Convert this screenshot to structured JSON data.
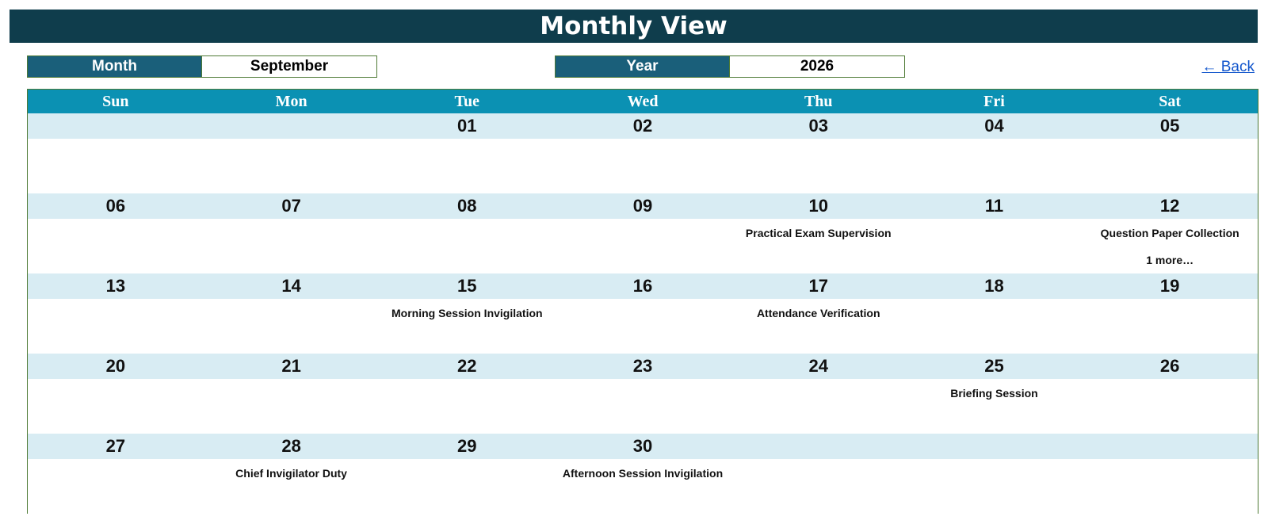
{
  "title": "Monthly View",
  "month": {
    "label": "Month",
    "value": "September"
  },
  "year": {
    "label": "Year",
    "value": "2026"
  },
  "back_link": "← Back",
  "colors": {
    "title_bg": "#0f3d4c",
    "selector_label_bg": "#1a5f7a",
    "weekday_header_bg": "#0b91b3",
    "date_row_bg": "#d8ecf3",
    "border": "#4e7a35",
    "link": "#1155cc"
  },
  "weekdays": [
    "Sun",
    "Mon",
    "Tue",
    "Wed",
    "Thu",
    "Fri",
    "Sat"
  ],
  "weeks": [
    [
      {
        "date": "",
        "events": []
      },
      {
        "date": "",
        "events": []
      },
      {
        "date": "01",
        "events": []
      },
      {
        "date": "02",
        "events": []
      },
      {
        "date": "03",
        "events": []
      },
      {
        "date": "04",
        "events": []
      },
      {
        "date": "05",
        "events": []
      }
    ],
    [
      {
        "date": "06",
        "events": []
      },
      {
        "date": "07",
        "events": []
      },
      {
        "date": "08",
        "events": []
      },
      {
        "date": "09",
        "events": []
      },
      {
        "date": "10",
        "events": [
          "Practical Exam Supervision"
        ]
      },
      {
        "date": "11",
        "events": []
      },
      {
        "date": "12",
        "events": [
          "Question Paper Collection"
        ],
        "more": "1 more…"
      }
    ],
    [
      {
        "date": "13",
        "events": []
      },
      {
        "date": "14",
        "events": []
      },
      {
        "date": "15",
        "events": [
          "Morning Session Invigilation"
        ]
      },
      {
        "date": "16",
        "events": []
      },
      {
        "date": "17",
        "events": [
          "Attendance Verification"
        ]
      },
      {
        "date": "18",
        "events": []
      },
      {
        "date": "19",
        "events": []
      }
    ],
    [
      {
        "date": "20",
        "events": []
      },
      {
        "date": "21",
        "events": []
      },
      {
        "date": "22",
        "events": []
      },
      {
        "date": "23",
        "events": []
      },
      {
        "date": "24",
        "events": []
      },
      {
        "date": "25",
        "events": [
          "Briefing Session"
        ]
      },
      {
        "date": "26",
        "events": []
      }
    ],
    [
      {
        "date": "27",
        "events": []
      },
      {
        "date": "28",
        "events": [
          "Chief Invigilator Duty"
        ]
      },
      {
        "date": "29",
        "events": []
      },
      {
        "date": "30",
        "events": [
          "Afternoon Session Invigilation"
        ]
      },
      {
        "date": "",
        "events": []
      },
      {
        "date": "",
        "events": []
      },
      {
        "date": "",
        "events": []
      }
    ]
  ]
}
